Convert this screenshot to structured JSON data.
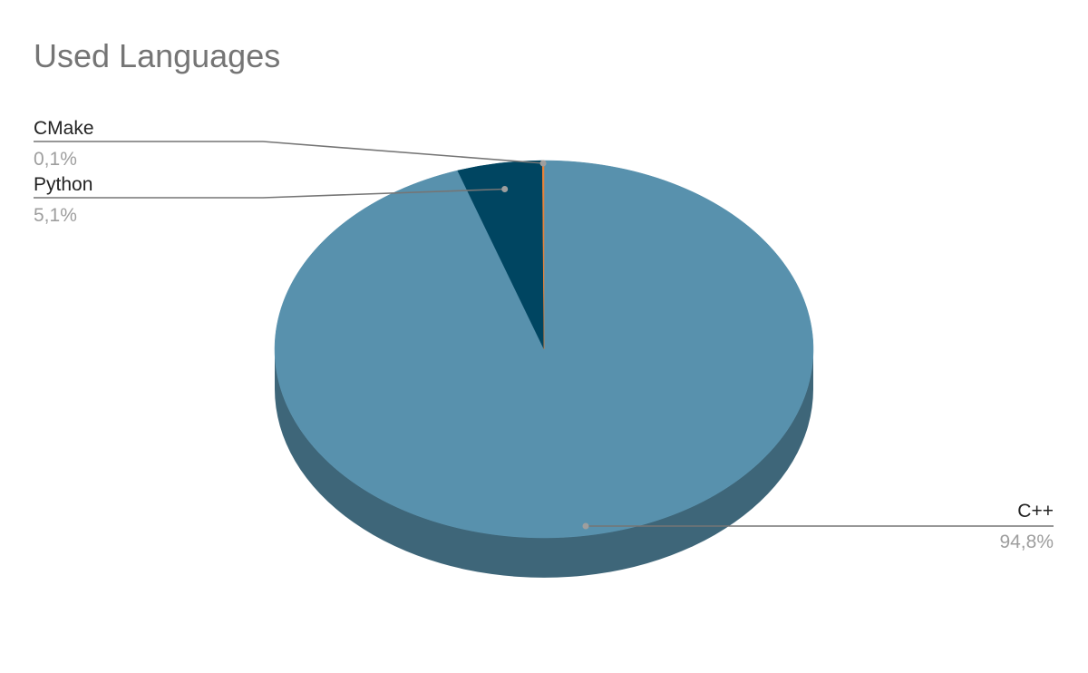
{
  "chart_data": {
    "type": "pie",
    "title": "Used Languages",
    "style": "3d",
    "slices": [
      {
        "label": "CMake",
        "value": 0.1,
        "display": "0,1%",
        "color": "#e8833a"
      },
      {
        "label": "Python",
        "value": 5.1,
        "display": "5,1%",
        "color": "#004561"
      },
      {
        "label": "C++",
        "value": 94.8,
        "display": "94,8%",
        "color": "#5891ad"
      }
    ],
    "side_color": "#3e6679",
    "leader_color": "#757575"
  }
}
